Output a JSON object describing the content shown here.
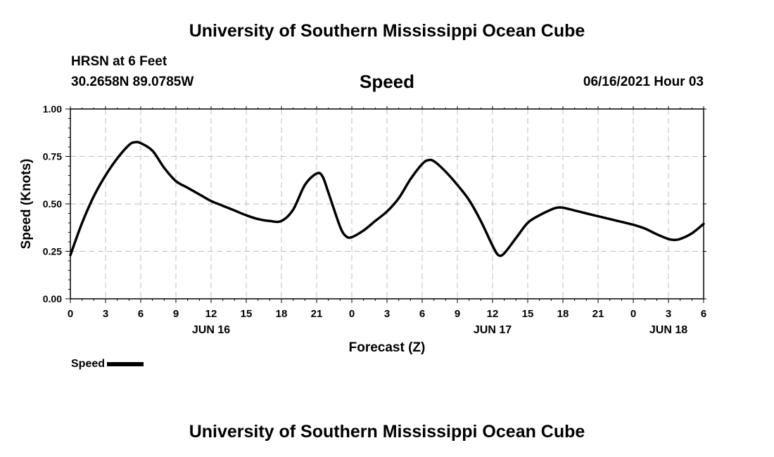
{
  "header": {
    "title": "University of Southern Mississippi Ocean Cube",
    "station": "HRSN at 6 Feet",
    "coordinates": "30.2658N  89.0785W",
    "timestamp": "06/16/2021 Hour 03"
  },
  "footer": {
    "title": "University of Southern Mississippi Ocean Cube"
  },
  "chart_data": {
    "type": "line",
    "title": "Speed",
    "xlabel": "Forecast (Z)",
    "ylabel": "Speed (Knots)",
    "ylim": [
      0,
      1
    ],
    "xlim_hours": [
      0,
      54
    ],
    "yticks": [
      "0.00",
      "0.25",
      "0.50",
      "0.75",
      "1.00"
    ],
    "xticks": [
      "0",
      "3",
      "6",
      "9",
      "12",
      "15",
      "18",
      "21",
      "0",
      "3",
      "6",
      "9",
      "12",
      "15",
      "18",
      "21",
      "0",
      "3",
      "6"
    ],
    "date_labels": [
      {
        "label": "JUN 16",
        "hour": 12
      },
      {
        "label": "JUN 17",
        "hour": 36
      },
      {
        "label": "JUN 18",
        "hour": 51
      }
    ],
    "grid": true,
    "legend_position": "bottom-left",
    "series": [
      {
        "name": "Speed",
        "color": "#000000",
        "x": [
          0,
          1,
          2,
          3,
          4,
          5,
          5.5,
          6,
          7,
          8,
          9,
          10,
          11,
          12,
          13,
          14,
          15,
          16,
          17,
          18,
          19,
          20,
          21,
          21.5,
          22,
          23,
          23.5,
          24,
          25,
          26,
          27,
          28,
          29,
          30,
          30.5,
          31,
          32,
          33,
          34,
          35,
          36,
          36.5,
          37,
          38,
          39,
          40,
          41,
          41.5,
          42,
          43,
          44,
          45,
          46,
          47,
          48,
          49,
          50,
          51,
          51.5,
          52,
          53,
          54
        ],
        "values": [
          0.23,
          0.4,
          0.54,
          0.65,
          0.74,
          0.81,
          0.825,
          0.82,
          0.78,
          0.69,
          0.62,
          0.585,
          0.55,
          0.515,
          0.49,
          0.465,
          0.44,
          0.42,
          0.41,
          0.41,
          0.47,
          0.6,
          0.66,
          0.645,
          0.56,
          0.38,
          0.33,
          0.325,
          0.36,
          0.41,
          0.46,
          0.53,
          0.63,
          0.71,
          0.73,
          0.725,
          0.67,
          0.6,
          0.52,
          0.41,
          0.28,
          0.23,
          0.24,
          0.32,
          0.4,
          0.44,
          0.47,
          0.48,
          0.48,
          0.465,
          0.45,
          0.435,
          0.42,
          0.405,
          0.39,
          0.37,
          0.34,
          0.315,
          0.31,
          0.315,
          0.345,
          0.395
        ]
      }
    ]
  }
}
